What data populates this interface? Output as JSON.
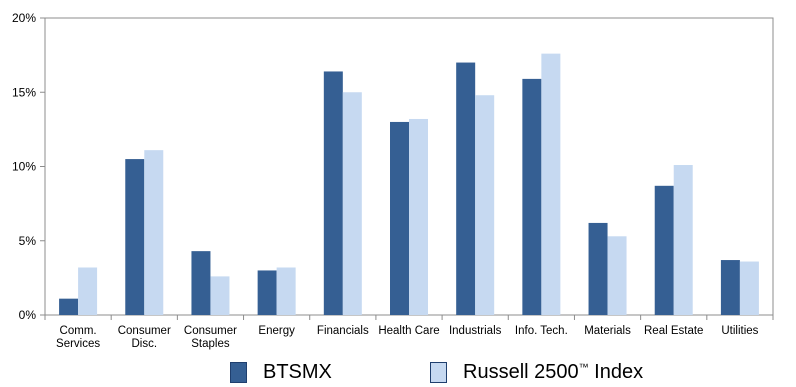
{
  "chart_data": {
    "type": "bar",
    "categories": [
      [
        "Comm.",
        "Services"
      ],
      [
        "Consumer",
        "Disc."
      ],
      [
        "Consumer",
        "Staples"
      ],
      [
        "Energy"
      ],
      [
        "Financials"
      ],
      [
        "Health Care"
      ],
      [
        "Industrials"
      ],
      [
        "Info. Tech."
      ],
      [
        "Materials"
      ],
      [
        "Real Estate"
      ],
      [
        "Utilities"
      ]
    ],
    "series": [
      {
        "name": "BTSMX",
        "color": "#355f93",
        "values": [
          1.1,
          10.5,
          4.3,
          3.0,
          16.4,
          13.0,
          17.0,
          15.9,
          6.2,
          8.7,
          3.7
        ]
      },
      {
        "name": "Russell 2500",
        "name_sup": "™",
        "name_suffix": " Index",
        "color": "#c6d9f1",
        "values": [
          3.2,
          11.1,
          2.6,
          3.2,
          15.0,
          13.2,
          14.8,
          17.6,
          5.3,
          10.1,
          3.6
        ]
      }
    ],
    "ylim": [
      0,
      20
    ],
    "yticks": [
      0,
      5,
      10,
      15,
      20
    ],
    "ytick_labels": [
      "0%",
      "5%",
      "10%",
      "15%",
      "20%"
    ],
    "grid": false,
    "legend_position": "bottom"
  }
}
